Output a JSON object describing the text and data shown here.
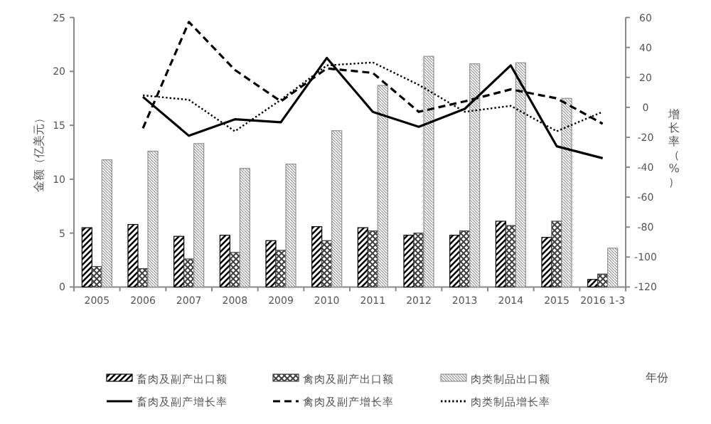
{
  "chart_data": {
    "type": "bar",
    "categories": [
      "2005",
      "2006",
      "2007",
      "2008",
      "2009",
      "2010",
      "2011",
      "2012",
      "2013",
      "2014",
      "2015",
      "2016 1-3"
    ],
    "annotations": [
      "年份"
    ],
    "ylabel": "金额（亿美元）",
    "y2label": "增长率（%）",
    "ylim": [
      0,
      25
    ],
    "yticks": [
      0,
      5,
      10,
      15,
      20,
      25
    ],
    "y2lim": [
      -120,
      60
    ],
    "y2ticks": [
      -120,
      -100,
      -80,
      -60,
      -40,
      -20,
      0,
      20,
      40,
      60
    ],
    "legend": "bottom",
    "marker": "none",
    "series": [
      {
        "name": "畜肉及副产出口额",
        "color": "#000000",
        "values": [
          5.5,
          5.8,
          4.7,
          4.8,
          4.3,
          5.6,
          5.5,
          4.8,
          4.8,
          6.1,
          4.6,
          0.7
        ]
      },
      {
        "name": "禽肉及副产出口额",
        "color": "#404040",
        "values": [
          1.9,
          1.7,
          2.6,
          3.2,
          3.4,
          4.3,
          5.2,
          5.0,
          5.2,
          5.7,
          6.1,
          1.2
        ]
      },
      {
        "name": "肉类制品出口额",
        "color": "#909090",
        "values": [
          11.8,
          12.6,
          13.3,
          11.0,
          11.4,
          14.5,
          18.7,
          21.4,
          20.7,
          20.8,
          17.5,
          3.6
        ]
      },
      {
        "name": "畜肉及副产增长率",
        "color": "#000000",
        "type": "line",
        "axis": "y2",
        "line_style": "solid",
        "values": [
          null,
          7,
          -19,
          -8,
          -10,
          33,
          -3,
          -13,
          -1,
          28,
          -26,
          -34
        ]
      },
      {
        "name": "禽肉及副产增长率",
        "color": "#000000",
        "type": "line",
        "axis": "y2",
        "line_style": "dashed",
        "values": [
          null,
          -14,
          57,
          25,
          4,
          26,
          23,
          -3,
          4,
          12,
          6,
          -11
        ]
      },
      {
        "name": "肉类制品增长率",
        "color": "#000000",
        "type": "line",
        "axis": "y2",
        "line_style": "dotted",
        "values": [
          null,
          8,
          5,
          -16,
          5,
          28,
          30,
          15,
          -3,
          1,
          -16,
          -3
        ]
      }
    ]
  }
}
